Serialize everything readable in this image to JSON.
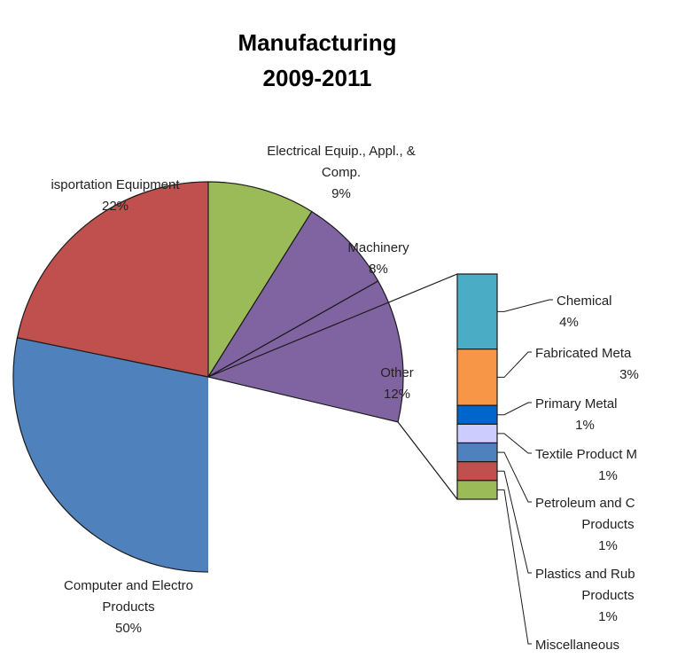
{
  "chart_data": {
    "type": "pie",
    "title": [
      "Manufacturing",
      "2009-2011"
    ],
    "subtype": "bar-of-pie",
    "pie": [
      {
        "name": "Computer and Electro Products",
        "label_lines": [
          "Computer and Electro",
          "Products"
        ],
        "value": 50,
        "label": "50%",
        "color": "#4f81bd"
      },
      {
        "name": "Transportation Equipment",
        "label_lines": [
          "isportation Equipment"
        ],
        "value": 22,
        "label": "22%",
        "color": "#c0504d"
      },
      {
        "name": "Electrical Equip., Appl., & Comp.",
        "label_lines": [
          "Electrical Equip., Appl., &",
          "Comp."
        ],
        "value": 9,
        "label": "9%",
        "color": "#9bbb59"
      },
      {
        "name": "Machinery",
        "label_lines": [
          "Machinery"
        ],
        "value": 8,
        "label": "8%",
        "color": "#8064a2"
      },
      {
        "name": "Other",
        "label_lines": [
          "Other"
        ],
        "value": 12,
        "label": "12%",
        "color": "#8064a2"
      }
    ],
    "other_breakdown": [
      {
        "name": "Chemical",
        "label_lines": [
          "Chemical"
        ],
        "value": 4,
        "label": "4%",
        "color": "#4bacc6"
      },
      {
        "name": "Fabricated Meta",
        "label_lines": [
          "Fabricated Meta"
        ],
        "value": 3,
        "label": "3%",
        "color": "#f79646"
      },
      {
        "name": "Primary Metal",
        "label_lines": [
          "Primary Metal"
        ],
        "value": 1,
        "label": "1%",
        "color": "#0066cc"
      },
      {
        "name": "Textile Product M",
        "label_lines": [
          "Textile Product M"
        ],
        "value": 1,
        "label": "1%",
        "color": "#ccccff"
      },
      {
        "name": "Petroleum and C Products",
        "label_lines": [
          "Petroleum and C",
          "Products"
        ],
        "value": 1,
        "label": "1%",
        "color": "#4f81bd"
      },
      {
        "name": "Plastics and Rub Products",
        "label_lines": [
          "Plastics and Rub",
          "Products"
        ],
        "value": 1,
        "label": "1%",
        "color": "#c0504d"
      },
      {
        "name": "Miscellaneous",
        "label_lines": [
          "Miscellaneous"
        ],
        "value": 1,
        "label": "",
        "color": "#9bbb59"
      }
    ]
  }
}
